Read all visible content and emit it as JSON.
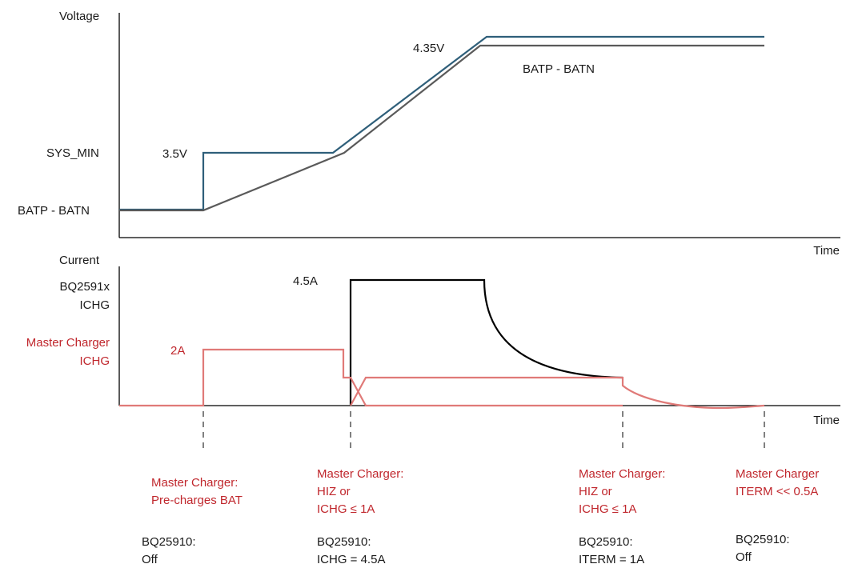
{
  "colors": {
    "axis": "#000000",
    "vsys_line": "#2f5f7a",
    "vbat_line": "#5a5a5a",
    "bq_current": "#000000",
    "master_current": "#e07a78",
    "red_text": "#c0272d",
    "text": "#1a1a1a"
  },
  "voltage_plot": {
    "y_axis_label": "Voltage",
    "x_axis_label": "Time",
    "levels": {
      "sys_min": "SYS_MIN",
      "batp_batn": "BATP - BATN"
    },
    "annotations": {
      "v35": "3.5V",
      "v435": "4.35V",
      "bat_curve": "BATP - BATN"
    }
  },
  "current_plot": {
    "y_axis_label": "Current",
    "x_axis_label": "Time",
    "bq_label_line1": "BQ2591x",
    "bq_label_line2": "ICHG",
    "master_label_line1": "Master Charger",
    "master_label_line2": "ICHG",
    "annotations": {
      "a45": "4.5A",
      "a2": "2A"
    }
  },
  "phases": [
    {
      "master": [
        "Master Charger:",
        "Pre-charges BAT"
      ],
      "bq": [
        "BQ25910:",
        "Off"
      ]
    },
    {
      "master": [
        "Master Charger:",
        "HIZ or",
        "ICHG ≤ 1A"
      ],
      "bq": [
        "BQ25910:",
        "ICHG = 4.5A"
      ]
    },
    {
      "master": [
        "Master Charger:",
        "HIZ or",
        "ICHG ≤ 1A"
      ],
      "bq": [
        "BQ25910:",
        "ITERM = 1A"
      ]
    },
    {
      "master": [
        "Master Charger",
        "ITERM << 0.5A"
      ],
      "bq": [
        "BQ25910:",
        "Off"
      ]
    }
  ]
}
